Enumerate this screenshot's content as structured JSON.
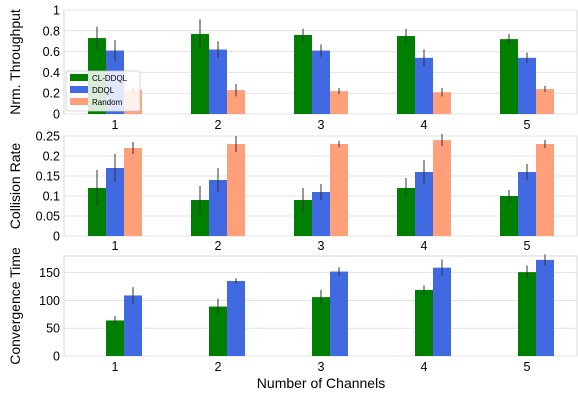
{
  "chart_data": [
    {
      "type": "bar",
      "ylabel": "Nrm. Throughput",
      "categories": [
        "1",
        "2",
        "3",
        "4",
        "5"
      ],
      "ylim": [
        0,
        1
      ],
      "yticks": [
        0,
        0.2,
        0.4,
        0.6,
        0.8,
        1
      ],
      "ytick_labels": [
        "0",
        "0.2",
        "0.4",
        "0.6",
        "0.8",
        "1"
      ],
      "grid": true,
      "legend_position": "left",
      "series": [
        {
          "name": "CL-DDQL",
          "color": "#008000",
          "values": [
            0.73,
            0.77,
            0.76,
            0.75,
            0.72
          ],
          "errors": [
            0.11,
            0.14,
            0.06,
            0.07,
            0.05
          ]
        },
        {
          "name": "DDQL",
          "color": "#4169E1",
          "values": [
            0.61,
            0.62,
            0.61,
            0.54,
            0.54
          ],
          "errors": [
            0.1,
            0.08,
            0.06,
            0.08,
            0.05
          ]
        },
        {
          "name": "Random",
          "color": "#FFA07A",
          "values": [
            0.23,
            0.23,
            0.22,
            0.21,
            0.24
          ],
          "errors": [
            0.03,
            0.06,
            0.03,
            0.04,
            0.03
          ]
        }
      ]
    },
    {
      "type": "bar",
      "ylabel": "Collision Rate",
      "categories": [
        "1",
        "2",
        "3",
        "4",
        "5"
      ],
      "ylim": [
        0,
        0.25
      ],
      "yticks": [
        0,
        0.05,
        0.1,
        0.15,
        0.2,
        0.25
      ],
      "ytick_labels": [
        "0",
        "0.05",
        "0.1",
        "0.15",
        "0.2",
        "0.25"
      ],
      "grid": true,
      "series": [
        {
          "name": "CL-DDQL",
          "color": "#008000",
          "values": [
            0.12,
            0.09,
            0.09,
            0.12,
            0.1
          ],
          "errors": [
            0.045,
            0.035,
            0.03,
            0.025,
            0.015
          ]
        },
        {
          "name": "DDQL",
          "color": "#4169E1",
          "values": [
            0.17,
            0.14,
            0.11,
            0.16,
            0.16
          ],
          "errors": [
            0.035,
            0.03,
            0.02,
            0.03,
            0.02
          ]
        },
        {
          "name": "Random",
          "color": "#FFA07A",
          "values": [
            0.22,
            0.23,
            0.23,
            0.24,
            0.23
          ],
          "errors": [
            0.015,
            0.02,
            0.008,
            0.015,
            0.01
          ]
        }
      ]
    },
    {
      "type": "bar",
      "ylabel": "Convergence Time",
      "xlabel": "Number of Channels",
      "categories": [
        "1",
        "2",
        "3",
        "4",
        "5"
      ],
      "ylim": [
        0,
        180
      ],
      "yticks": [
        0,
        50,
        100,
        150
      ],
      "ytick_labels": [
        "0",
        "50",
        "100",
        "150"
      ],
      "grid": true,
      "series": [
        {
          "name": "CL-DDQL",
          "color": "#008000",
          "values": [
            64,
            89,
            106,
            119,
            151
          ],
          "errors": [
            8,
            14,
            13,
            8,
            12
          ]
        },
        {
          "name": "DDQL",
          "color": "#4169E1",
          "values": [
            109,
            135,
            152,
            159,
            173
          ],
          "errors": [
            15,
            5,
            8,
            15,
            10
          ]
        }
      ]
    }
  ]
}
